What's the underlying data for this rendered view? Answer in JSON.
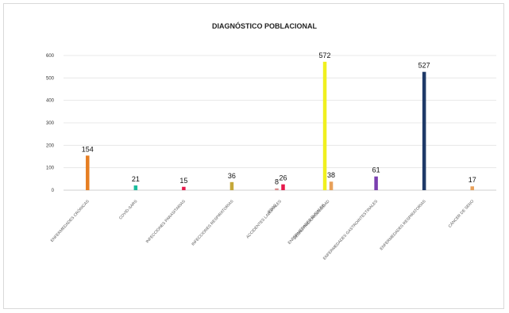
{
  "chart_data": {
    "type": "bar",
    "title": "DIAGNÓSTICO POBLACIONAL",
    "ylim": [
      0,
      600
    ],
    "yticks": [
      0,
      100,
      200,
      300,
      400,
      500,
      600
    ],
    "ytick_labels": [
      "0",
      "100",
      "200",
      "300",
      "400",
      "500",
      "600"
    ],
    "grid": true,
    "categories": [
      {
        "bars": [
          {
            "value": 154,
            "label": "154",
            "color": "#e67e22"
          }
        ],
        "label_lines": [
          "ENFERMEDADES CRÓNICAS"
        ]
      },
      {
        "bars": [
          {
            "value": 21,
            "label": "21",
            "color": "#1abc9c"
          }
        ],
        "label_lines": [
          "COVID-SARS"
        ]
      },
      {
        "bars": [
          {
            "value": 15,
            "label": "15",
            "color": "#e6194b"
          }
        ],
        "label_lines": [
          "INFECCIONES PARASITARIAS"
        ]
      },
      {
        "bars": [
          {
            "value": 36,
            "label": "36",
            "color": "#c5a83a"
          }
        ],
        "label_lines": [
          "INFECCIONES RESPIRATORIAS"
        ]
      },
      {
        "bars": [
          {
            "value": 8,
            "label": "8",
            "color": "#d98c8c"
          },
          {
            "value": 26,
            "label": "26",
            "color": "#e6194b"
          }
        ],
        "label_lines": [
          "ACCIDENTES LABORALES",
          "EDAS"
        ]
      },
      {
        "bars": [
          {
            "value": 572,
            "label": "572",
            "color": "#f0f01e"
          },
          {
            "value": 38,
            "label": "38",
            "color": "#e8a05a"
          }
        ],
        "label_lines": [
          "DESNUTRICIÓN/OBESIDAD",
          "ENFERMEDADES BUCALES"
        ]
      },
      {
        "bars": [
          {
            "value": 61,
            "label": "61",
            "color": "#7b3fb0"
          }
        ],
        "label_lines": [
          "ENFERMEDADES GASTROINTESTINALES"
        ]
      },
      {
        "bars": [
          {
            "value": 527,
            "label": "527",
            "color": "#1f3a68"
          }
        ],
        "label_lines": [
          "ENFERMEDADES RESPIRATORIAS"
        ]
      },
      {
        "bars": [
          {
            "value": 17,
            "label": "17",
            "color": "#e8a05a"
          }
        ],
        "label_lines": [
          "CÁNCER DE SENO"
        ]
      }
    ]
  }
}
